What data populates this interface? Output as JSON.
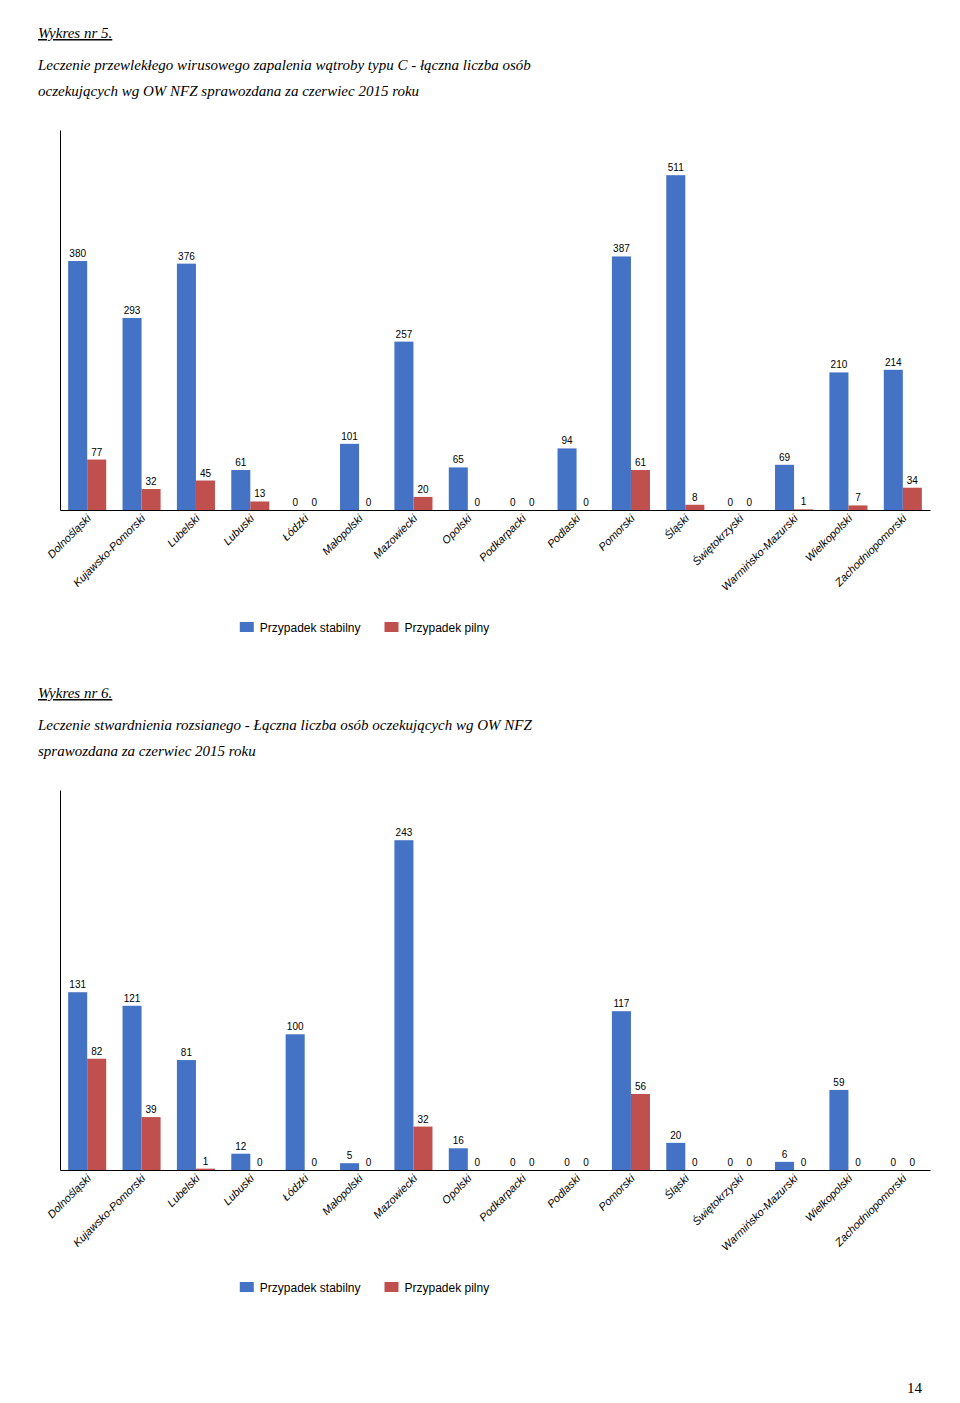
{
  "chart_data": [
    {
      "type": "bar",
      "title": "Wykres nr 5.",
      "subtitle": [
        "Leczenie przewlekłego wirusowego zapalenia wątroby typu C - łączna liczba osób",
        "oczekujących wg OW NFZ sprawozdana za czerwiec 2015 roku"
      ],
      "categories": [
        "Dolnośląski",
        "Kujawsko-Pomorski",
        "Lubelski",
        "Lubuski",
        "Łódzki",
        "Małopolski",
        "Mazowiecki",
        "Opolski",
        "Podkarpacki",
        "Podlaski",
        "Pomorski",
        "Śląski",
        "Świętokrzyski",
        "Warmińsko-Mazurski",
        "Wielkopolski",
        "Zachodniopomorski"
      ],
      "series": [
        {
          "name": "Przypadek stabilny",
          "color": "#4472C4",
          "values": [
            380,
            293,
            376,
            61,
            0,
            101,
            257,
            65,
            0,
            94,
            387,
            511,
            0,
            69,
            210,
            214
          ]
        },
        {
          "name": "Przypadek pilny",
          "color": "#C0504D",
          "values": [
            77,
            32,
            45,
            13,
            0,
            0,
            20,
            0,
            0,
            0,
            61,
            8,
            0,
            1,
            7,
            34
          ]
        }
      ],
      "ylim": [
        0,
        580
      ],
      "tick_labels": "x",
      "data_labels": true,
      "grid": false,
      "legend": "bottom"
    },
    {
      "type": "bar",
      "title": "Wykres nr 6.",
      "subtitle": [
        "Leczenie stwardnienia rozsianego - Łączna liczba osób oczekujących wg OW NFZ",
        "sprawozdana za czerwiec 2015 roku"
      ],
      "categories": [
        "Dolnośląski",
        "Kujawsko-Pomorski",
        "Lubelski",
        "Lubuski",
        "Łódzki",
        "Małopolski",
        "Mazowiecki",
        "Opolski",
        "Podkarpacki",
        "Podlaski",
        "Pomorski",
        "Śląski",
        "Świętokrzyski",
        "Warmińsko-Mazurski",
        "Wielkopolski",
        "Zachodniopomorski"
      ],
      "series": [
        {
          "name": "Przypadek stabilny",
          "color": "#4472C4",
          "values": [
            131,
            121,
            81,
            12,
            100,
            5,
            243,
            16,
            0,
            0,
            117,
            20,
            0,
            6,
            59,
            0
          ]
        },
        {
          "name": "Przypadek pilny",
          "color": "#C0504D",
          "values": [
            82,
            39,
            1,
            0,
            0,
            0,
            32,
            0,
            0,
            0,
            56,
            0,
            0,
            0,
            0,
            0
          ]
        }
      ],
      "ylim": [
        0,
        280
      ],
      "tick_labels": "x",
      "data_labels": true,
      "grid": false,
      "legend": "bottom",
      "annotations": [
        "14"
      ]
    }
  ]
}
